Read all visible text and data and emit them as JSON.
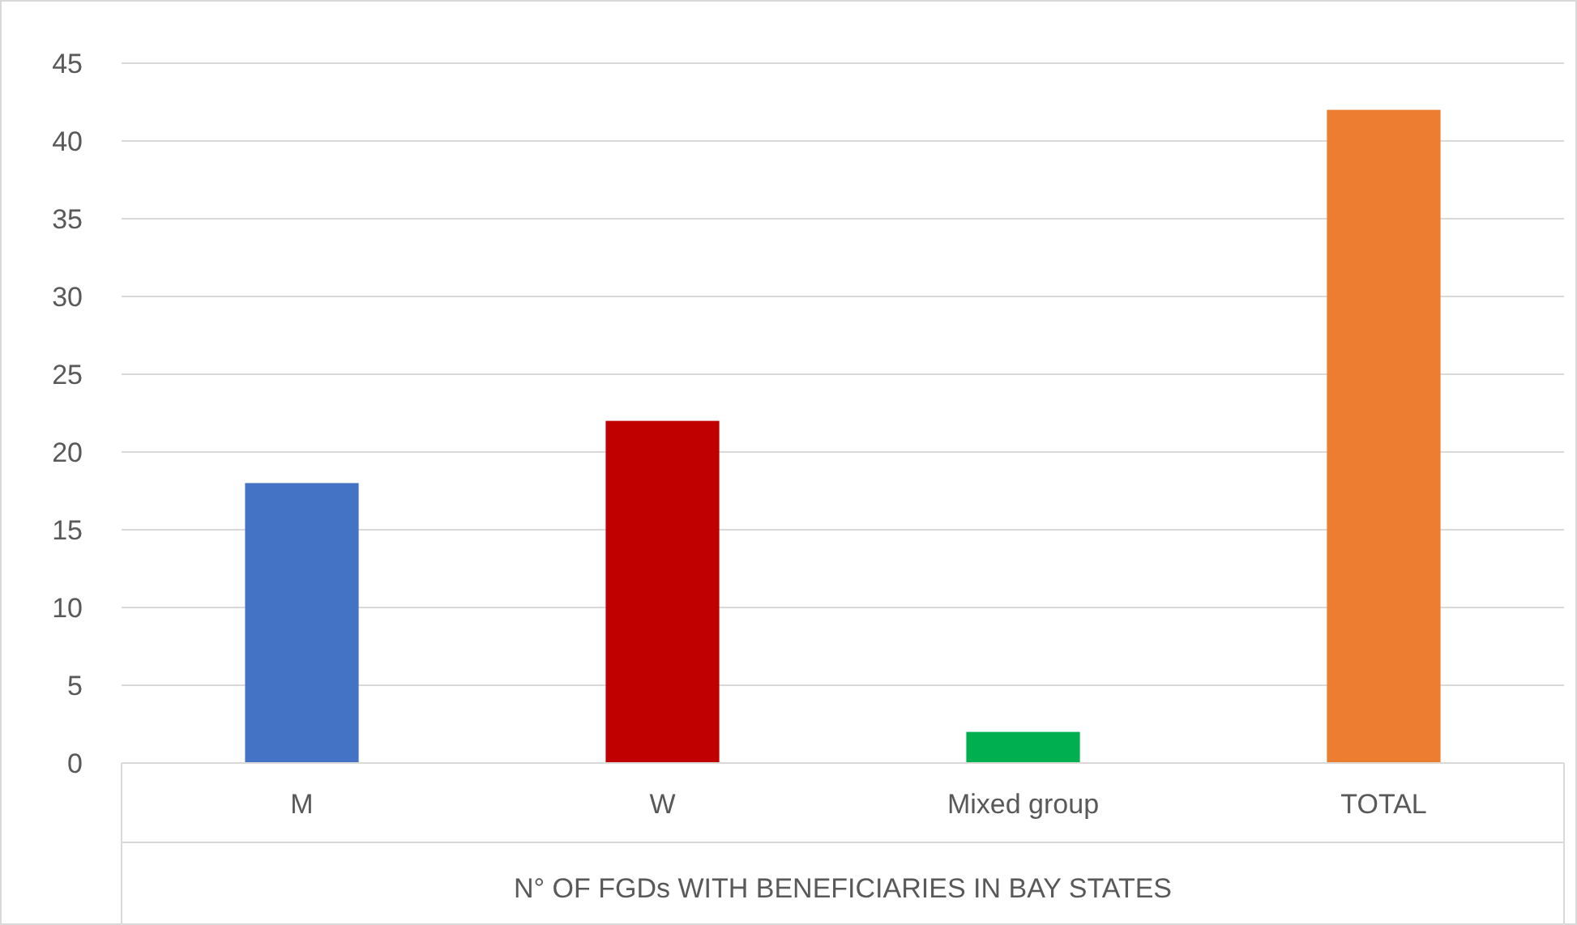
{
  "chart_data": {
    "type": "bar",
    "xlabel": "N° OF FGDs WITH BENEFICIARIES IN BAY STATES",
    "categories": [
      "M",
      "W",
      "Mixed group",
      "TOTAL"
    ],
    "values": [
      18,
      22,
      2,
      42
    ],
    "colors": [
      "#4472c4",
      "#c00000",
      "#00b050",
      "#ed7d31"
    ],
    "ylim": [
      0,
      45
    ],
    "yticks": [
      0,
      5,
      10,
      15,
      20,
      25,
      30,
      35,
      40,
      45
    ],
    "grid": "y"
  }
}
